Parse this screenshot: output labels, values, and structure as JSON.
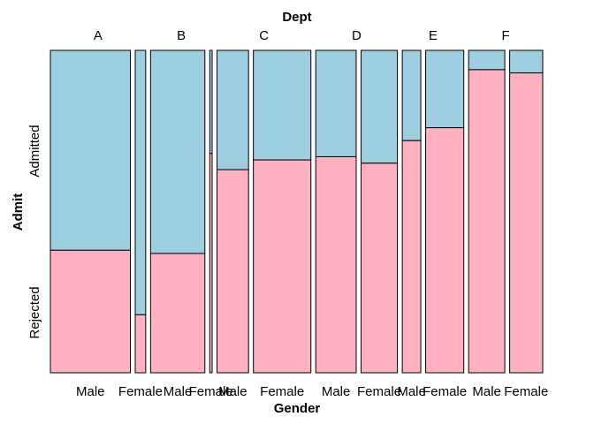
{
  "chart_data": {
    "type": "mosaic",
    "top_title": "Dept",
    "xlabel": "Gender",
    "ylabel": "Admit",
    "row_levels": [
      "Admitted",
      "Rejected"
    ],
    "colors": {
      "Admitted": "#9ECFE1",
      "Rejected": "#FFB0C1"
    },
    "depts": [
      {
        "dept": "A",
        "genders": [
          {
            "gender": "Male",
            "n": 825,
            "admitted_share": 0.62
          },
          {
            "gender": "Female",
            "n": 108,
            "admitted_share": 0.82
          }
        ]
      },
      {
        "dept": "B",
        "genders": [
          {
            "gender": "Male",
            "n": 560,
            "admitted_share": 0.63
          },
          {
            "gender": "Female",
            "n": 25,
            "admitted_share": 0.32
          }
        ]
      },
      {
        "dept": "C",
        "genders": [
          {
            "gender": "Male",
            "n": 325,
            "admitted_share": 0.37
          },
          {
            "gender": "Female",
            "n": 593,
            "admitted_share": 0.34
          }
        ]
      },
      {
        "dept": "D",
        "genders": [
          {
            "gender": "Male",
            "n": 417,
            "admitted_share": 0.33
          },
          {
            "gender": "Female",
            "n": 375,
            "admitted_share": 0.35
          }
        ]
      },
      {
        "dept": "E",
        "genders": [
          {
            "gender": "Male",
            "n": 191,
            "admitted_share": 0.28
          },
          {
            "gender": "Female",
            "n": 393,
            "admitted_share": 0.24
          }
        ]
      },
      {
        "dept": "F",
        "genders": [
          {
            "gender": "Male",
            "n": 373,
            "admitted_share": 0.06
          },
          {
            "gender": "Female",
            "n": 341,
            "admitted_share": 0.07
          }
        ]
      }
    ]
  }
}
